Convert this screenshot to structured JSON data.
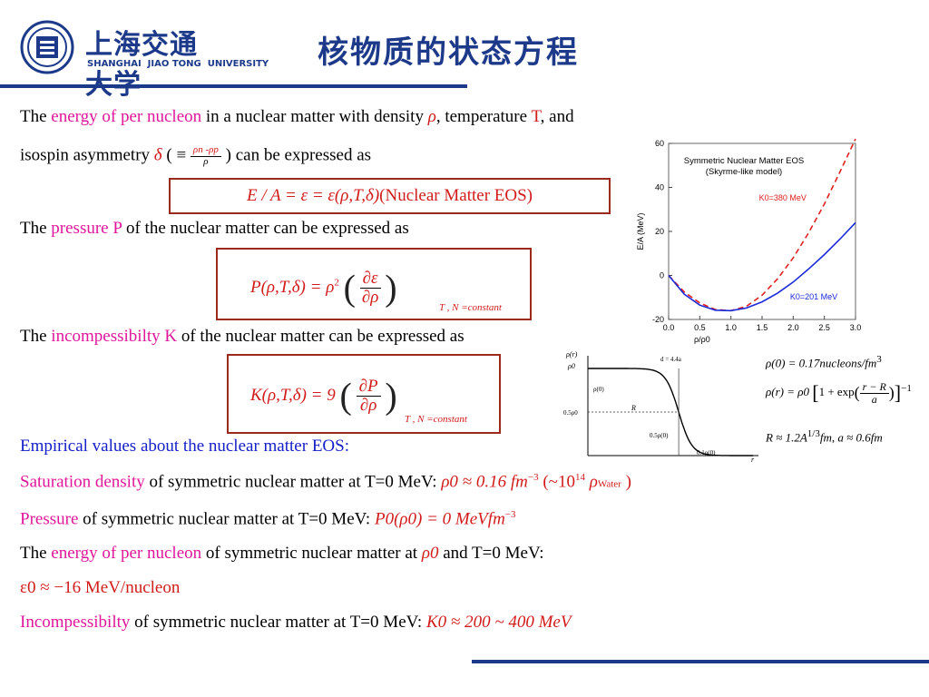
{
  "header": {
    "logo_cn": "上海交通大学",
    "logo_en": "SHANGHAI  JIAO TONG  UNIVERSITY",
    "title": "核物质的状态方程"
  },
  "intro": {
    "l1_a": "The ",
    "l1_hl": "energy of per nucleon",
    "l1_b": " in a nuclear matter with density ",
    "l1_rho": "ρ",
    "l1_c": ", temperature ",
    "l1_T": "T",
    "l1_d": ", and",
    "l2_a": "isospin asymmetry ",
    "l2_delta": "δ",
    "l2_eq_open": "( ≡ ",
    "l2_num": "ρn -ρp",
    "l2_den": "ρ",
    "l2_b": ") can be expressed as"
  },
  "eos_box": {
    "formula": "E / A = ε = ε(ρ,T,δ)",
    "label": " (Nuclear Matter EOS)"
  },
  "pressure": {
    "a": "The ",
    "hl": "pressure P",
    "b": " of the nuclear matter can be expressed as",
    "lhs": "P(ρ,T,δ) = ρ",
    "exp": "2",
    "num": "∂ε",
    "den": "∂ρ",
    "sub": "T , N =constant"
  },
  "incomp": {
    "a": "The ",
    "hl": "incompessibilty K",
    "b": " of the nuclear matter can be expressed as",
    "lhs": "K(ρ,T,δ) = 9",
    "num": "∂P",
    "den": "∂ρ",
    "sub": "T , N =constant"
  },
  "empirical": {
    "heading": "Empirical values about the nuclear matter EOS:",
    "sat_hl": "Saturation density",
    "sat_text": " of symmetric nuclear matter at T=0 MeV: ",
    "sat_val": "ρ0 ≈ 0.16 fm",
    "sat_exp": "−3",
    "sat_b": " (~10",
    "sat_exp2": "14",
    "sat_rho": " ρ",
    "sat_water": "Water",
    "sat_c": " )",
    "pres_hl": "Pressure",
    "pres_text": " of symmetric nuclear matter at T=0 MeV: ",
    "pres_val": "P0(ρ0) = 0 MeVfm",
    "pres_exp": "−3",
    "en_a": "The ",
    "en_hl": "energy of per nucleon",
    "en_b": " of symmetric nuclear matter at ",
    "en_rho": "ρ0",
    "en_c": " and T=0 MeV:",
    "en_val": "ε0 ≈ −16 MeV/nucleon",
    "inc_hl": "Incompessibilty",
    "inc_text": " of symmetric nuclear matter at T=0 MeV: ",
    "inc_val": "K0 ≈ 200 ~ 400 MeV"
  },
  "chart_data": {
    "type": "line",
    "title": "Symmetric Nuclear Matter EOS",
    "subtitle": "(Skyrme-like model)",
    "xlabel": "ρ/ρ0",
    "ylabel": "E/A (MeV)",
    "xlim": [
      0.0,
      3.0
    ],
    "ylim": [
      -20,
      60
    ],
    "xticks": [
      "0.0",
      "0.5",
      "1.0",
      "1.5",
      "2.0",
      "2.5",
      "3.0"
    ],
    "yticks": [
      "-20",
      "0",
      "20",
      "40",
      "60"
    ],
    "series": [
      {
        "name": "K0=380 MeV",
        "color": "#e02020",
        "dash": true,
        "x": [
          0.0,
          0.25,
          0.5,
          0.75,
          1.0,
          1.25,
          1.5,
          1.75,
          2.0,
          2.25,
          2.5,
          2.75,
          3.0
        ],
        "y": [
          0,
          -7.5,
          -12.5,
          -15.5,
          -16,
          -14,
          -9,
          -1.5,
          8,
          19.5,
          32.5,
          47,
          62
        ]
      },
      {
        "name": "K0=201 MeV",
        "color": "#1a2ad8",
        "dash": false,
        "x": [
          0.0,
          0.25,
          0.5,
          0.75,
          1.0,
          1.25,
          1.5,
          1.75,
          2.0,
          2.25,
          2.5,
          2.75,
          3.0
        ],
        "y": [
          0,
          -8.5,
          -13.5,
          -15.8,
          -16,
          -14.8,
          -12,
          -8,
          -3,
          3,
          9.5,
          16.5,
          24
        ]
      }
    ]
  },
  "density_profile": {
    "ylabel": "ρ(r)",
    "rho0": "ρ0",
    "rho_zero": "ρ(0)",
    "half": "0.5ρ0",
    "R": "R",
    "d": "d = 4.4a",
    "half_label": "0.5ρ(0)",
    "tenth_label": "0.1ρ(0)",
    "xlabel": "r",
    "shape": {
      "type": "woods-saxon",
      "R": 0.55,
      "a": 0.04,
      "rmax": 1.0
    }
  },
  "ws_formulas": {
    "f1": "ρ(0) = 0.17nucleons/fm",
    "f1_exp": "3",
    "f2_lhs": "ρ(r) = ρ0",
    "f2_one": "1 + exp",
    "f2_num": "r − R",
    "f2_den": "a",
    "f2_exp": "−1",
    "f3": "R ≈ 1.2A",
    "f3_exp": "1/3",
    "f3_b": "fm,   a ≈ 0.6fm"
  }
}
